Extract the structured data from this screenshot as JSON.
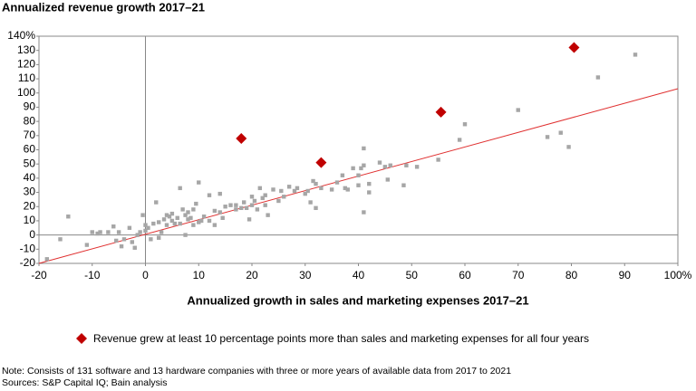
{
  "chart_data": {
    "type": "scatter",
    "title": "Annualized revenue growth 2017–21",
    "x_label": "Annualized growth in sales and marketing expenses 2017–21",
    "note": "Note: Consists of 131 software and 13 hardware companies with three or more years of available data from 2017 to 2021",
    "sources": "Sources: S&P Capital IQ; Bain analysis",
    "xlim": [
      -20,
      100
    ],
    "ylim": [
      -20,
      140
    ],
    "xticks": [
      -20,
      -10,
      0,
      10,
      20,
      30,
      40,
      50,
      60,
      70,
      80,
      90,
      {
        "value": 100,
        "label": "100%"
      }
    ],
    "yticks": [
      -20,
      -10,
      0,
      10,
      20,
      30,
      40,
      50,
      60,
      70,
      80,
      90,
      100,
      110,
      120,
      130,
      {
        "value": 140,
        "label": "140%"
      }
    ],
    "legend": "bottom",
    "trendline": {
      "color": "#e03030",
      "x": [
        -20,
        100
      ],
      "y": [
        -20,
        103
      ]
    },
    "series": [
      {
        "color": "#a6a6a6",
        "marker": "square",
        "x": [
          -18.5,
          -16,
          -14.5,
          -11,
          -10,
          -9,
          -8.5,
          -7,
          -6,
          -5.5,
          -5,
          -4.5,
          -4,
          -3,
          -2.5,
          -2,
          -1.5,
          -1,
          -0.5,
          0,
          0,
          0.5,
          1,
          1.5,
          2,
          2.5,
          2.5,
          3,
          3.5,
          4,
          4,
          4.5,
          5,
          5,
          5.5,
          6,
          6.5,
          6.5,
          7,
          7.5,
          7.5,
          8,
          8,
          8.5,
          9,
          9,
          9.5,
          10,
          10,
          10.5,
          11,
          12,
          12,
          13,
          13,
          14,
          14,
          14.5,
          15,
          16,
          17,
          17,
          18,
          18.5,
          19,
          19.5,
          20,
          20,
          20.5,
          21,
          21.5,
          22,
          22.5,
          22.5,
          23,
          24,
          25,
          25.5,
          26,
          27,
          28,
          28.5,
          30,
          30.5,
          31,
          31.5,
          32,
          32,
          33,
          35,
          36,
          37,
          37.5,
          38,
          39,
          40,
          40,
          40.5,
          41,
          41,
          41,
          42,
          42,
          44,
          45,
          45.5,
          46,
          48.5,
          49,
          51,
          55,
          59,
          60,
          70,
          75.5,
          78,
          79.5,
          85,
          92
        ],
        "y": [
          -17,
          -3,
          13,
          -7,
          2,
          1,
          2,
          2,
          6,
          -4,
          2,
          -8,
          -3,
          5,
          -5,
          -9,
          0,
          2,
          14,
          7,
          3,
          5,
          -3,
          8,
          23,
          -2,
          9,
          2,
          11,
          7,
          14,
          13,
          10,
          15,
          8,
          12,
          33,
          8,
          18,
          0,
          14,
          11,
          16,
          12,
          18,
          7,
          22,
          9,
          37,
          10,
          13,
          10,
          28,
          7,
          17,
          16,
          29,
          12,
          20,
          21,
          18,
          21,
          19,
          23,
          19,
          11,
          27,
          21,
          24,
          18,
          33,
          26,
          28,
          21,
          14,
          32,
          24,
          31,
          27,
          34,
          31,
          33,
          29,
          31,
          23,
          38,
          19,
          36,
          33,
          32,
          37,
          42,
          33,
          32,
          47,
          35,
          42,
          47,
          61,
          49,
          16,
          30,
          36,
          51,
          48,
          39,
          49,
          35,
          49,
          48,
          53,
          67,
          78,
          88,
          69,
          72,
          62,
          111,
          127
        ]
      },
      {
        "name": "Revenue grew at least 10 percentage points more than sales and marketing expenses for all four years",
        "color": "#c00000",
        "marker": "diamond",
        "x": [
          18,
          33,
          55.5,
          80.5
        ],
        "y": [
          68,
          51,
          86.5,
          132
        ]
      }
    ]
  }
}
